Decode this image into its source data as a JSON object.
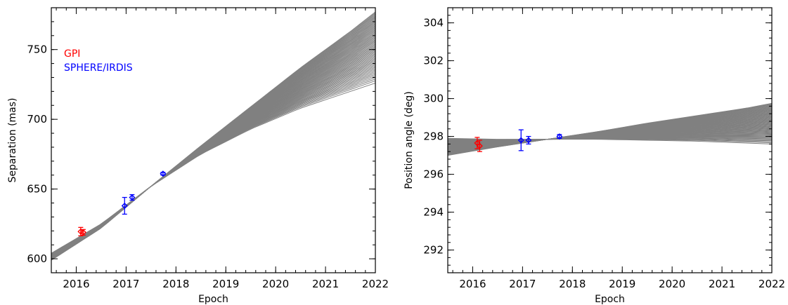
{
  "chart_data": [
    {
      "type": "line",
      "xlabel": "Epoch",
      "ylabel": "Separation (mas)",
      "xlim": [
        2015.5,
        2022
      ],
      "ylim": [
        590,
        780
      ],
      "x_ticks": [
        2016,
        2017,
        2018,
        2019,
        2020,
        2021,
        2022
      ],
      "y_ticks": [
        600,
        650,
        700,
        750
      ],
      "x_minor_step": 0.2,
      "y_minor_step": 10,
      "legend": {
        "placement": "top-left",
        "entries": [
          {
            "name": "GPI",
            "color": "#ff0000"
          },
          {
            "name": "SPHERE/IRDIS",
            "color": "#0000ff"
          }
        ]
      },
      "orbit_fan": {
        "color": "#808080",
        "count": 60,
        "x": [
          2015.5,
          2016.5,
          2017.5,
          2018.5,
          2019.5,
          2020.5,
          2021.5,
          2022.0
        ],
        "y_low": [
          604,
          625,
          652,
          675,
          693,
          708,
          720,
          726
        ],
        "y_high": [
          599,
          622,
          652,
          681,
          709,
          737,
          763,
          777
        ]
      },
      "series": [
        {
          "name": "GPI",
          "color": "#ff0000",
          "x": [
            2016.09,
            2016.14
          ],
          "y": [
            619.5,
            619.0
          ],
          "err": [
            3,
            2
          ]
        },
        {
          "name": "SPHERE/IRDIS",
          "color": "#0000ff",
          "x": [
            2016.97,
            2017.12,
            2017.74
          ],
          "y": [
            638,
            644,
            661
          ],
          "err": [
            6,
            2,
            1
          ]
        }
      ]
    },
    {
      "type": "line",
      "xlabel": "Epoch",
      "ylabel": "Position angle (deg)",
      "xlim": [
        2015.5,
        2022
      ],
      "ylim": [
        290.8,
        304.8
      ],
      "x_ticks": [
        2016,
        2017,
        2018,
        2019,
        2020,
        2021,
        2022
      ],
      "y_ticks": [
        292,
        294,
        296,
        298,
        300,
        302,
        304
      ],
      "x_minor_step": 0.2,
      "y_minor_step": 0.4,
      "orbit_fan": {
        "color": "#808080",
        "count": 60,
        "x": [
          2015.5,
          2016.5,
          2017.5,
          2018.5,
          2019.5,
          2020.5,
          2021.5,
          2022.0
        ],
        "y_low": [
          297.9,
          297.85,
          297.85,
          297.85,
          297.8,
          297.75,
          297.65,
          297.6
        ],
        "y_high": [
          297.0,
          297.45,
          297.85,
          298.25,
          298.7,
          299.1,
          299.5,
          299.75
        ]
      },
      "series": [
        {
          "name": "GPI",
          "color": "#ff0000",
          "x": [
            2016.09,
            2016.14
          ],
          "y": [
            297.65,
            297.5
          ],
          "err": [
            0.3,
            0.3
          ]
        },
        {
          "name": "SPHERE/IRDIS",
          "color": "#0000ff",
          "x": [
            2016.97,
            2017.12,
            2017.74
          ],
          "y": [
            297.8,
            297.8,
            298.0
          ],
          "err": [
            0.55,
            0.2,
            0.1
          ]
        }
      ]
    }
  ]
}
